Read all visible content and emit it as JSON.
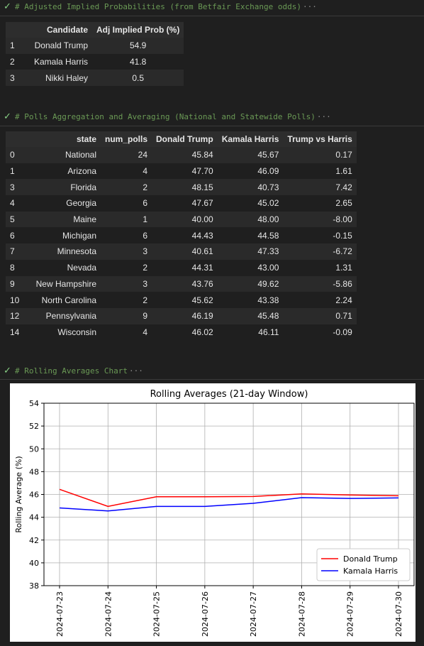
{
  "cells": [
    {
      "code": "# Adjusted Implied Probabilities (from Betfair Exchange odds)",
      "more": "···"
    },
    {
      "code": "# Polls Aggregation and Averaging (National and Statewide Polls)",
      "more": "···"
    },
    {
      "code": "# Rolling Averages Chart",
      "more": "···"
    }
  ],
  "check_glyph": "✓",
  "prob_table": {
    "columns": [
      "",
      "Candidate",
      "Adj Implied Prob (%)"
    ],
    "rows": [
      [
        "1",
        "Donald Trump",
        "54.9"
      ],
      [
        "2",
        "Kamala Harris",
        "41.8"
      ],
      [
        "3",
        "Nikki Haley",
        "0.5"
      ]
    ]
  },
  "polls_table": {
    "columns": [
      "",
      "state",
      "num_polls",
      "Donald Trump",
      "Kamala Harris",
      "Trump vs Harris"
    ],
    "rows": [
      [
        "0",
        "National",
        "24",
        "45.84",
        "45.67",
        "0.17"
      ],
      [
        "1",
        "Arizona",
        "4",
        "47.70",
        "46.09",
        "1.61"
      ],
      [
        "3",
        "Florida",
        "2",
        "48.15",
        "40.73",
        "7.42"
      ],
      [
        "4",
        "Georgia",
        "6",
        "47.67",
        "45.02",
        "2.65"
      ],
      [
        "5",
        "Maine",
        "1",
        "40.00",
        "48.00",
        "-8.00"
      ],
      [
        "6",
        "Michigan",
        "6",
        "44.43",
        "44.58",
        "-0.15"
      ],
      [
        "7",
        "Minnesota",
        "3",
        "40.61",
        "47.33",
        "-6.72"
      ],
      [
        "8",
        "Nevada",
        "2",
        "44.31",
        "43.00",
        "1.31"
      ],
      [
        "9",
        "New Hampshire",
        "3",
        "43.76",
        "49.62",
        "-5.86"
      ],
      [
        "10",
        "North Carolina",
        "2",
        "45.62",
        "43.38",
        "2.24"
      ],
      [
        "12",
        "Pennsylvania",
        "9",
        "46.19",
        "45.48",
        "0.71"
      ],
      [
        "14",
        "Wisconsin",
        "4",
        "46.02",
        "46.11",
        "-0.09"
      ]
    ]
  },
  "chart_data": {
    "type": "line",
    "title": "Rolling Averages (21-day Window)",
    "xlabel": "",
    "ylabel": "Rolling Average (%)",
    "x": [
      "2024-07-23",
      "2024-07-24",
      "2024-07-25",
      "2024-07-26",
      "2024-07-27",
      "2024-07-28",
      "2024-07-29",
      "2024-07-30"
    ],
    "ylim": [
      38,
      54
    ],
    "yticks": [
      38,
      40,
      42,
      44,
      46,
      48,
      50,
      52,
      54
    ],
    "grid": true,
    "legend_position": "lower-right",
    "series": [
      {
        "name": "Donald Trump",
        "color": "#ff0000",
        "values": [
          46.45,
          44.95,
          45.8,
          45.8,
          45.82,
          46.05,
          45.95,
          45.88
        ]
      },
      {
        "name": "Kamala Harris",
        "color": "#0000ff",
        "values": [
          44.82,
          44.55,
          44.95,
          44.95,
          45.22,
          45.72,
          45.65,
          45.7
        ]
      }
    ]
  }
}
